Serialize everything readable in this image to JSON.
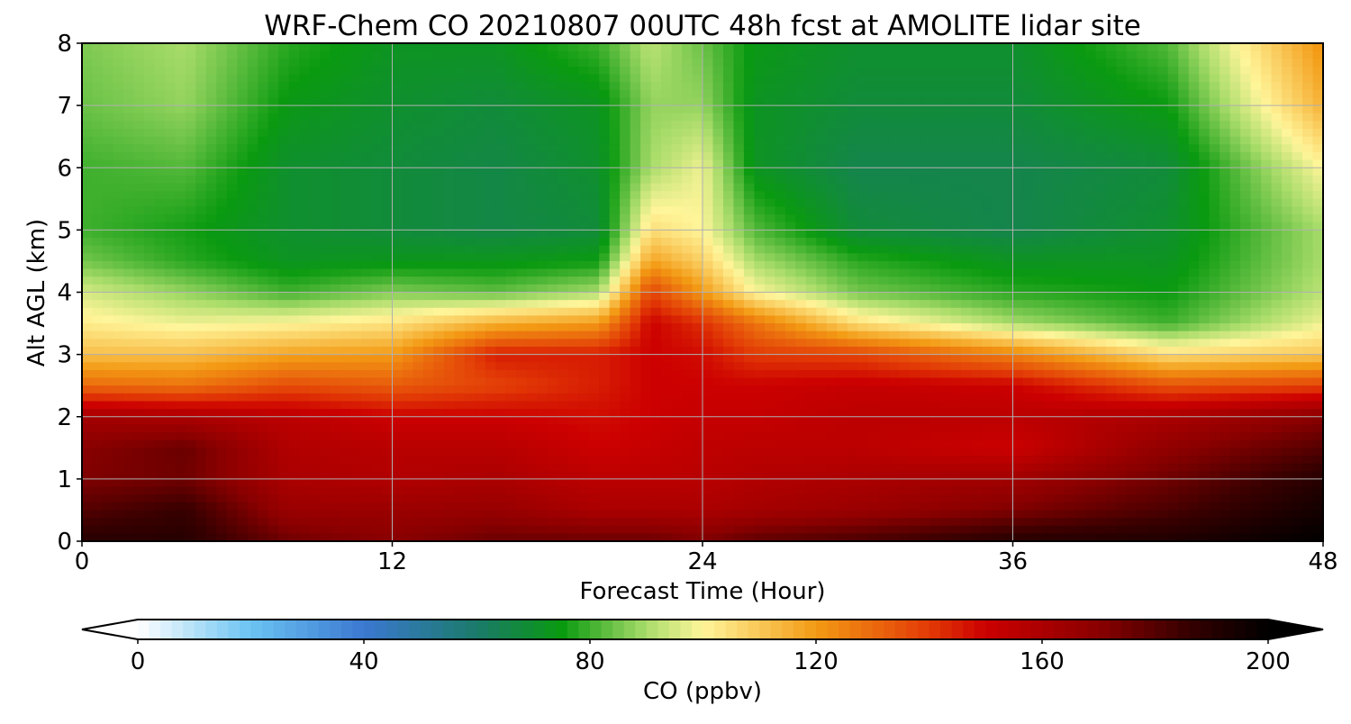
{
  "chart_data": {
    "type": "heatmap",
    "title": "WRF-Chem CO  20210807 00UTC 48h fcst at AMOLITE lidar site",
    "xlabel": "Forecast Time (Hour)",
    "ylabel": "Alt AGL (km)",
    "xlim": [
      0,
      48
    ],
    "ylim": [
      0,
      8
    ],
    "xticks": [
      0,
      12,
      24,
      36,
      48
    ],
    "yticks": [
      0,
      1,
      2,
      3,
      4,
      5,
      6,
      7,
      8
    ],
    "grid": true,
    "colorbar": {
      "label": "CO  (ppbv)",
      "min": 0,
      "max": 200,
      "ticks": [
        0,
        40,
        80,
        120,
        160,
        200
      ],
      "extend": "both",
      "stops": [
        {
          "value": 0,
          "color": "#ffffff"
        },
        {
          "value": 20,
          "color": "#6ac3f2"
        },
        {
          "value": 40,
          "color": "#3b78d0"
        },
        {
          "value": 60,
          "color": "#1a7a6a"
        },
        {
          "value": 75,
          "color": "#0a9a10"
        },
        {
          "value": 90,
          "color": "#a9dc6a"
        },
        {
          "value": 100,
          "color": "#fff59a"
        },
        {
          "value": 120,
          "color": "#f39a14"
        },
        {
          "value": 140,
          "color": "#e23a06"
        },
        {
          "value": 150,
          "color": "#cc0000"
        },
        {
          "value": 170,
          "color": "#8a0000"
        },
        {
          "value": 185,
          "color": "#3a0000"
        },
        {
          "value": 200,
          "color": "#000000"
        }
      ]
    },
    "hours": [
      0,
      4,
      8,
      12,
      16,
      20,
      22,
      24,
      26,
      30,
      36,
      42,
      48
    ],
    "altitudes_km": [
      0,
      0.5,
      1,
      1.5,
      2,
      2.5,
      3,
      3.5,
      4,
      4.5,
      5,
      6,
      7,
      8
    ],
    "co_ppbv": [
      [
        190,
        190,
        175,
        170,
        176,
        176,
        176,
        172,
        178,
        182,
        190,
        192,
        200
      ],
      [
        180,
        186,
        165,
        165,
        166,
        160,
        160,
        160,
        162,
        165,
        172,
        182,
        195
      ],
      [
        172,
        175,
        160,
        158,
        160,
        155,
        155,
        156,
        158,
        160,
        163,
        175,
        190
      ],
      [
        170,
        176,
        158,
        156,
        156,
        150,
        152,
        154,
        155,
        155,
        150,
        168,
        180
      ],
      [
        162,
        160,
        155,
        150,
        150,
        148,
        150,
        152,
        152,
        155,
        155,
        160,
        170
      ],
      [
        130,
        128,
        136,
        133,
        138,
        145,
        150,
        150,
        150,
        152,
        150,
        135,
        138
      ],
      [
        112,
        112,
        118,
        120,
        145,
        145,
        150,
        148,
        140,
        138,
        125,
        105,
        110
      ],
      [
        102,
        98,
        100,
        104,
        115,
        120,
        150,
        142,
        128,
        105,
        90,
        80,
        98
      ],
      [
        95,
        88,
        80,
        86,
        83,
        90,
        138,
        120,
        100,
        85,
        78,
        75,
        92
      ],
      [
        85,
        78,
        72,
        73,
        73,
        75,
        118,
        108,
        90,
        78,
        72,
        72,
        90
      ],
      [
        80,
        76,
        70,
        68,
        66,
        68,
        105,
        100,
        82,
        68,
        65,
        70,
        90
      ],
      [
        80,
        82,
        70,
        68,
        66,
        70,
        90,
        98,
        72,
        65,
        65,
        68,
        100
      ],
      [
        84,
        88,
        74,
        70,
        68,
        72,
        88,
        88,
        72,
        68,
        68,
        75,
        115
      ],
      [
        86,
        90,
        78,
        72,
        72,
        80,
        92,
        84,
        74,
        70,
        70,
        82,
        122
      ]
    ]
  }
}
